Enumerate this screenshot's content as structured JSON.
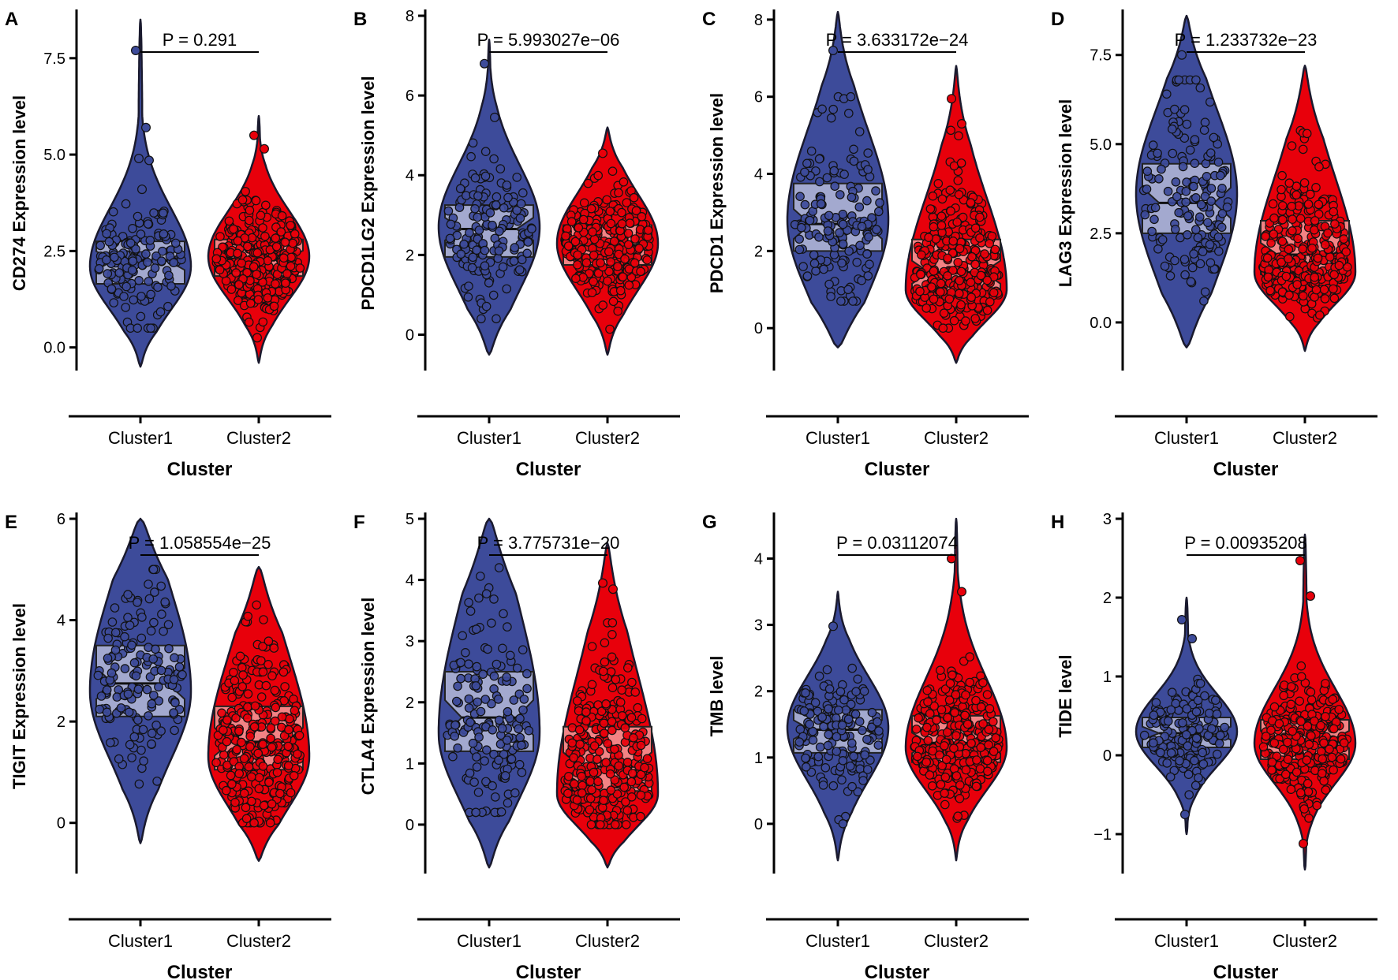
{
  "figure": {
    "colors": {
      "cluster1": "#3D4B9A",
      "cluster2": "#E8000B",
      "box1": "#B9BEDB",
      "box2": "#F5A0A0",
      "outline": "#1A1A2E"
    }
  },
  "chart_data": [
    {
      "panel": "A",
      "type": "violin",
      "ylabel": "CD274 Expression level",
      "xlabel": "Cluster",
      "categories": [
        "Cluster1",
        "Cluster2"
      ],
      "p_label": "P = 0.291",
      "ylim": [
        -0.6,
        8.6
      ],
      "yticks": [
        0.0,
        2.5,
        5.0,
        7.5
      ],
      "ytick_labels": [
        "0.0",
        "2.5",
        "5.0",
        "7.5"
      ],
      "groups": [
        {
          "name": "Cluster1",
          "min": -0.5,
          "max": 8.5,
          "q1": 1.65,
          "median": 2.25,
          "q3": 2.75,
          "mode": 2.1,
          "n": 160,
          "point_range": [
            0.5,
            5.8
          ],
          "outliers": [
            7.7,
            5.7,
            4.9,
            4.85,
            4.1
          ]
        },
        {
          "name": "Cluster2",
          "min": -0.4,
          "max": 6.0,
          "q1": 1.85,
          "median": 2.3,
          "q3": 2.8,
          "mode": 2.35,
          "n": 300,
          "point_range": [
            0.3,
            4.3
          ],
          "outliers": [
            5.5,
            5.15,
            0.25
          ]
        }
      ]
    },
    {
      "panel": "B",
      "type": "violin",
      "ylabel": "PDCD1LG2 Expression level",
      "xlabel": "Cluster",
      "categories": [
        "Cluster1",
        "Cluster2"
      ],
      "p_label": "P = 5.993027e−06",
      "ylim": [
        -0.9,
        8.0
      ],
      "yticks": [
        0,
        2,
        4,
        6,
        8
      ],
      "ytick_labels": [
        "0",
        "2",
        "4",
        "6",
        "8"
      ],
      "groups": [
        {
          "name": "Cluster1",
          "min": -0.5,
          "max": 7.4,
          "q1": 1.95,
          "median": 2.65,
          "q3": 3.25,
          "mode": 2.7,
          "n": 160,
          "point_range": [
            0.4,
            4.9
          ],
          "outliers": [
            6.8,
            5.45
          ]
        },
        {
          "name": "Cluster2",
          "min": -0.5,
          "max": 5.2,
          "q1": 1.75,
          "median": 2.25,
          "q3": 2.75,
          "mode": 2.3,
          "n": 300,
          "point_range": [
            0.0,
            4.1
          ],
          "outliers": [
            4.55
          ]
        }
      ]
    },
    {
      "panel": "C",
      "type": "violin",
      "ylabel": "PDCD1 Expression level",
      "xlabel": "Cluster",
      "categories": [
        "Cluster1",
        "Cluster2"
      ],
      "p_label": "P = 3.633172e−24",
      "ylim": [
        -1.1,
        8.1
      ],
      "yticks": [
        0,
        2,
        4,
        6,
        8
      ],
      "ytick_labels": [
        "0",
        "2",
        "4",
        "6",
        "8"
      ],
      "groups": [
        {
          "name": "Cluster1",
          "min": -0.5,
          "max": 8.2,
          "q1": 2.0,
          "median": 2.7,
          "q3": 3.75,
          "mode": 2.8,
          "n": 160,
          "point_range": [
            0.7,
            6.0
          ],
          "outliers": [
            7.2
          ]
        },
        {
          "name": "Cluster2",
          "min": -0.9,
          "max": 6.8,
          "q1": 0.95,
          "median": 1.45,
          "q3": 2.3,
          "mode": 1.0,
          "n": 300,
          "point_range": [
            0.0,
            5.3
          ],
          "outliers": [
            5.95,
            5.3
          ]
        }
      ]
    },
    {
      "panel": "D",
      "type": "violin",
      "ylabel": "LAG3 Expression level",
      "xlabel": "Cluster",
      "categories": [
        "Cluster1",
        "Cluster2"
      ],
      "p_label": "P = 1.233732e−23",
      "ylim": [
        -1.35,
        8.6
      ],
      "yticks": [
        0.0,
        2.5,
        5.0,
        7.5
      ],
      "ytick_labels": [
        "0.0",
        "2.5",
        "5.0",
        "7.5"
      ],
      "groups": [
        {
          "name": "Cluster1",
          "min": -0.7,
          "max": 8.6,
          "q1": 2.5,
          "median": 3.35,
          "q3": 4.45,
          "mode": 3.6,
          "n": 160,
          "point_range": [
            0.6,
            6.8
          ],
          "outliers": [
            7.5
          ]
        },
        {
          "name": "Cluster2",
          "min": -0.8,
          "max": 7.2,
          "q1": 1.35,
          "median": 1.9,
          "q3": 2.85,
          "mode": 1.4,
          "n": 300,
          "point_range": [
            0.0,
            6.3
          ],
          "outliers": []
        }
      ]
    },
    {
      "panel": "E",
      "type": "violin",
      "ylabel": "TIGIT Expression level",
      "xlabel": "Cluster",
      "categories": [
        "Cluster1",
        "Cluster2"
      ],
      "p_label": "P = 1.058554e−25",
      "ylim": [
        -1.0,
        6.0
      ],
      "yticks": [
        0,
        2,
        4,
        6
      ],
      "ytick_labels": [
        "0",
        "2",
        "4",
        "6"
      ],
      "groups": [
        {
          "name": "Cluster1",
          "min": -0.4,
          "max": 6.0,
          "q1": 2.1,
          "median": 2.75,
          "q3": 3.5,
          "mode": 2.6,
          "n": 160,
          "point_range": [
            0.6,
            5.0
          ],
          "outliers": []
        },
        {
          "name": "Cluster2",
          "min": -0.75,
          "max": 5.05,
          "q1": 1.05,
          "median": 1.6,
          "q3": 2.3,
          "mode": 1.3,
          "n": 300,
          "point_range": [
            0.0,
            4.3
          ],
          "outliers": []
        }
      ]
    },
    {
      "panel": "F",
      "type": "violin",
      "ylabel": "CTLA4 Expression level",
      "xlabel": "Cluster",
      "categories": [
        "Cluster1",
        "Cluster2"
      ],
      "p_label": "P = 3.775731e−20",
      "ylim": [
        -0.8,
        5.0
      ],
      "yticks": [
        0,
        1,
        2,
        3,
        4,
        5
      ],
      "ytick_labels": [
        "0",
        "1",
        "2",
        "3",
        "4",
        "5"
      ],
      "groups": [
        {
          "name": "Cluster1",
          "min": -0.7,
          "max": 5.0,
          "q1": 1.2,
          "median": 1.75,
          "q3": 2.5,
          "mode": 1.5,
          "n": 160,
          "point_range": [
            0.2,
            4.2
          ],
          "outliers": []
        },
        {
          "name": "Cluster2",
          "min": -0.7,
          "max": 4.6,
          "q1": 0.55,
          "median": 0.95,
          "q3": 1.6,
          "mode": 0.5,
          "n": 300,
          "point_range": [
            0.0,
            3.3
          ],
          "outliers": [
            3.95,
            3.85
          ]
        }
      ]
    },
    {
      "panel": "G",
      "type": "violin",
      "ylabel": "TMB level",
      "xlabel": "Cluster",
      "categories": [
        "Cluster1",
        "Cluster2"
      ],
      "p_label": "P = 0.03112074",
      "ylim": [
        -0.75,
        4.6
      ],
      "yticks": [
        0,
        1,
        2,
        3,
        4
      ],
      "ytick_labels": [
        "0",
        "1",
        "2",
        "3",
        "4"
      ],
      "groups": [
        {
          "name": "Cluster1",
          "min": -0.55,
          "max": 3.5,
          "q1": 1.07,
          "median": 1.42,
          "q3": 1.72,
          "mode": 1.45,
          "n": 160,
          "point_range": [
            0.0,
            2.6
          ],
          "outliers": [
            2.98
          ]
        },
        {
          "name": "Cluster2",
          "min": -0.55,
          "max": 4.6,
          "q1": 0.93,
          "median": 1.22,
          "q3": 1.63,
          "mode": 1.15,
          "n": 300,
          "point_range": [
            0.0,
            2.95
          ],
          "outliers": [
            4.0,
            3.5
          ]
        }
      ]
    },
    {
      "panel": "H",
      "type": "violin",
      "ylabel": "TIDE level",
      "xlabel": "Cluster",
      "categories": [
        "Cluster1",
        "Cluster2"
      ],
      "p_label": "P = 0.00935208",
      "ylim": [
        -1.5,
        3.0
      ],
      "yticks": [
        -1,
        0,
        1,
        2,
        3
      ],
      "ytick_labels": [
        "−1",
        "0",
        "1",
        "2",
        "3"
      ],
      "groups": [
        {
          "name": "Cluster1",
          "min": -1.0,
          "max": 2.0,
          "q1": 0.1,
          "median": 0.28,
          "q3": 0.48,
          "mode": 0.3,
          "n": 160,
          "point_range": [
            -0.5,
            1.3
          ],
          "outliers": [
            1.72,
            1.48,
            -0.75
          ]
        },
        {
          "name": "Cluster2",
          "min": -1.45,
          "max": 2.8,
          "q1": -0.05,
          "median": 0.2,
          "q3": 0.45,
          "mode": 0.15,
          "n": 300,
          "point_range": [
            -0.95,
            1.6
          ],
          "outliers": [
            2.47,
            2.02,
            -1.12
          ]
        }
      ]
    }
  ]
}
